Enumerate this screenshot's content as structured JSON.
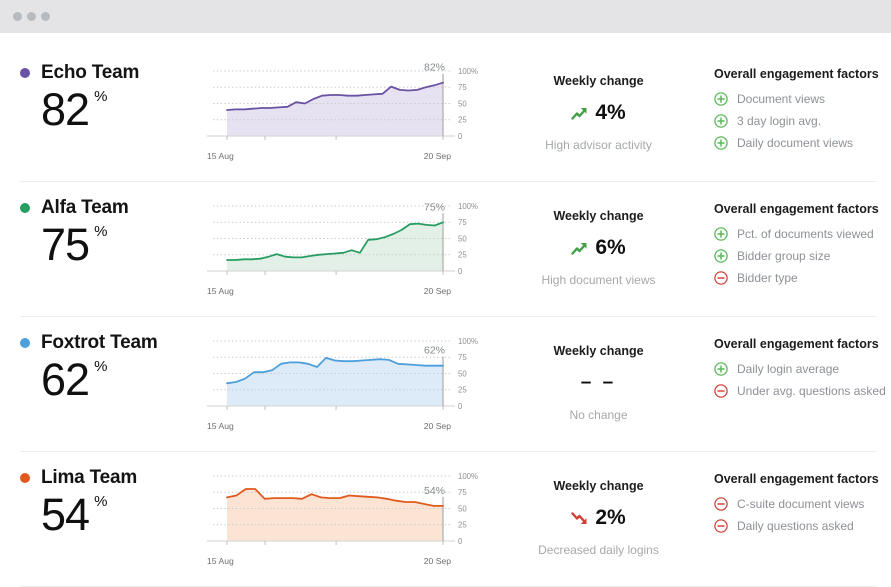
{
  "window": {
    "controls": [
      "window-dot",
      "window-dot",
      "window-dot"
    ]
  },
  "colors": {
    "positive_green": "#4caf50",
    "negative_red": "#d2483c",
    "echo_purple": "#6a51a3",
    "alfa_green": "#279d61",
    "foxtrot_blue": "#4d9fdb",
    "lima_orange": "#e05a1f",
    "topbar_gray": "#e4e4e6"
  },
  "icons": {
    "trend_up": "zigzag-arrow-up-right",
    "trend_down": "zigzag-arrow-down-right",
    "plus": "circled-plus",
    "minus": "circled-minus",
    "team_marker": "colored-dot"
  },
  "rows": [
    {
      "team": "Echo Team",
      "value": "82",
      "unit": "%",
      "color": "#6a51a3",
      "chart": {
        "type": "area",
        "x_start": "15 Aug",
        "x_end": "20 Sep",
        "ylim": [
          0,
          100
        ],
        "yticks": [
          "100%",
          "75",
          "50",
          "25",
          "0"
        ],
        "label": "82%",
        "fill": "#e7e2f2",
        "values": [
          40,
          41,
          41,
          42,
          43,
          43,
          44,
          45,
          52,
          50,
          57,
          62,
          63,
          63,
          62,
          62,
          63,
          64,
          65,
          76,
          71,
          70,
          71,
          75,
          78,
          82
        ]
      },
      "weekly": {
        "header": "Weekly change",
        "direction": "up",
        "value": "4%",
        "note": "High advisor activity"
      },
      "factors": {
        "header": "Overall engagement factors",
        "items": [
          {
            "sign": "plus",
            "label": "Document views"
          },
          {
            "sign": "plus",
            "label": "3 day login avg."
          },
          {
            "sign": "plus",
            "label": "Daily document views"
          }
        ]
      }
    },
    {
      "team": "Alfa Team",
      "value": "75",
      "unit": "%",
      "color": "#279d61",
      "chart": {
        "type": "area",
        "x_start": "15 Aug",
        "x_end": "20 Sep",
        "ylim": [
          0,
          100
        ],
        "yticks": [
          "100%",
          "75",
          "50",
          "25",
          "0"
        ],
        "label": "75%",
        "fill": "#e3f0e8",
        "values": [
          17,
          17,
          18,
          18,
          19,
          22,
          26,
          22,
          21,
          21,
          23,
          25,
          26,
          27,
          28,
          32,
          28,
          48,
          49,
          52,
          57,
          63,
          72,
          73,
          71,
          70,
          75
        ]
      },
      "weekly": {
        "header": "Weekly change",
        "direction": "up",
        "value": "6%",
        "note": "High document views"
      },
      "factors": {
        "header": "Overall engagement factors",
        "items": [
          {
            "sign": "plus",
            "label": "Pct. of documents viewed"
          },
          {
            "sign": "plus",
            "label": "Bidder group size"
          },
          {
            "sign": "minus",
            "label": "Bidder type"
          }
        ]
      }
    },
    {
      "team": "Foxtrot Team",
      "value": "62",
      "unit": "%",
      "color": "#4d9fdb",
      "chart": {
        "type": "area",
        "x_start": "15 Aug",
        "x_end": "20 Sep",
        "ylim": [
          0,
          100
        ],
        "yticks": [
          "100%",
          "75",
          "50",
          "25",
          "0"
        ],
        "label": "62%",
        "fill": "#ddebf8",
        "values": [
          35,
          37,
          42,
          52,
          52,
          55,
          65,
          67,
          67,
          65,
          60,
          74,
          70,
          69,
          69,
          70,
          71,
          72,
          71,
          65,
          64,
          63,
          62,
          62,
          62
        ]
      },
      "weekly": {
        "header": "Weekly change",
        "direction": "none",
        "value": "– –",
        "note": "No change"
      },
      "factors": {
        "header": "Overall engagement factors",
        "items": [
          {
            "sign": "plus",
            "label": "Daily login average"
          },
          {
            "sign": "minus",
            "label": "Under avg. questions asked"
          }
        ]
      }
    },
    {
      "team": "Lima Team",
      "value": "54",
      "unit": "%",
      "color": "#e05a1f",
      "chart": {
        "type": "area",
        "x_start": "15 Aug",
        "x_end": "20 Sep",
        "ylim": [
          0,
          100
        ],
        "yticks": [
          "100%",
          "75",
          "50",
          "25",
          "0"
        ],
        "label": "54%",
        "fill": "#fbe4d3",
        "values": [
          67,
          70,
          80,
          80,
          65,
          66,
          66,
          66,
          65,
          72,
          67,
          66,
          66,
          70,
          69,
          68,
          67,
          65,
          62,
          60,
          60,
          57,
          54,
          54
        ]
      },
      "weekly": {
        "header": "Weekly change",
        "direction": "down",
        "value": "2%",
        "note": "Decreased daily logins"
      },
      "factors": {
        "header": "Overall engagement factors",
        "items": [
          {
            "sign": "minus",
            "label": "C-suite document views"
          },
          {
            "sign": "minus",
            "label": "Daily questions asked"
          }
        ]
      }
    }
  ]
}
